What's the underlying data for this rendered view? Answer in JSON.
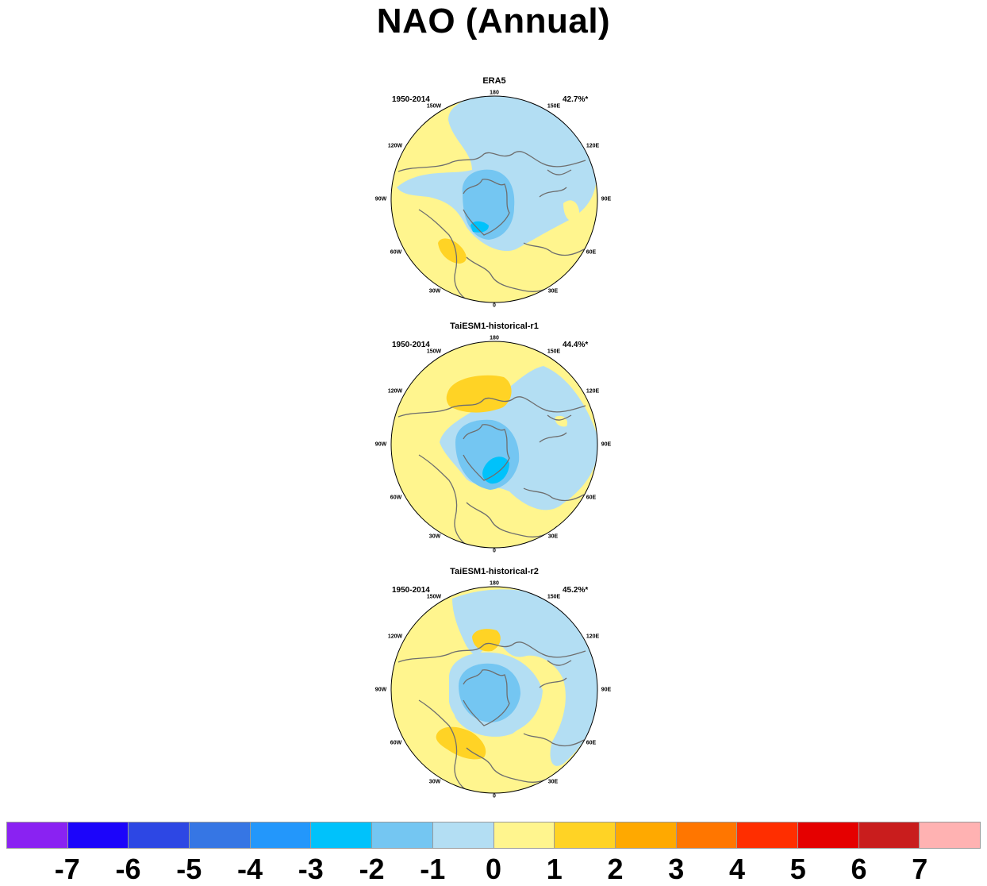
{
  "title": "NAO (Annual)",
  "panels": [
    {
      "name": "ERA5",
      "period": "1950-2014",
      "variance": "42.7%*"
    },
    {
      "name": "TaiESM1-historical-r1",
      "period": "1950-2014",
      "variance": "44.4%*"
    },
    {
      "name": "TaiESM1-historical-r2",
      "period": "1950-2014",
      "variance": "45.2%*"
    }
  ],
  "longitude_labels": {
    "lon_180": "180",
    "lon_150E": "150E",
    "lon_120E": "120E",
    "lon_90E": "90E",
    "lon_60E": "60E",
    "lon_30E": "30E",
    "lon_0": "0",
    "lon_30W": "30W",
    "lon_60W": "60W",
    "lon_90W": "90W",
    "lon_120W": "120W",
    "lon_150W": "150W"
  },
  "colorbar": {
    "colors": [
      "#8a22f2",
      "#1c05fa",
      "#2d47e4",
      "#3676e4",
      "#2397fb",
      "#00c2fb",
      "#74c6f2",
      "#b3def3",
      "#fff58e",
      "#ffd325",
      "#ffa900",
      "#ff7600",
      "#ff2e00",
      "#e50000",
      "#c91d1d",
      "#ffb2b2"
    ],
    "labels": [
      "-7",
      "-6",
      "-5",
      "-4",
      "-3",
      "-2",
      "-1",
      "0",
      "1",
      "2",
      "3",
      "4",
      "5",
      "6",
      "7"
    ]
  },
  "map_colors": {
    "neg1": "#b3def3",
    "neg2": "#74c6f2",
    "neg3": "#00c2fb",
    "pos0": "#fff58e",
    "pos1": "#ffd325",
    "coast": "#6e6e6e"
  }
}
